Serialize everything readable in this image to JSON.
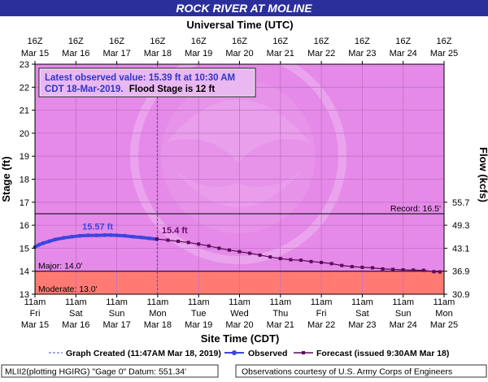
{
  "header": {
    "title": "ROCK RIVER AT MOLINE",
    "top_axis_label": "Universal Time (UTC)",
    "bottom_axis_label": "Site Time (CDT)"
  },
  "info_box": {
    "line1": "Latest observed value: 15.39 ft at 10:30 AM",
    "line2_prefix": "CDT 18-Mar-2019.",
    "line2_suffix": "Flood Stage is 12 ft"
  },
  "legend": {
    "created": "Graph Created (11:47AM Mar 18, 2019)",
    "observed": "Observed",
    "forecast": "Forecast (issued 9:30AM Mar 18)"
  },
  "footer": {
    "left": "MLII2(plotting HGIRG) \"Gage 0\" Datum: 551.34'",
    "right": "Observations courtesy of U.S. Army Corps of Engineers"
  },
  "colors": {
    "title_bg": "#2b2f9c",
    "plot_bg": "#e58ae8",
    "major_band": "#ff7a73",
    "observed": "#3b45e0",
    "forecast": "#5a0a5a",
    "annotation_observed": "#3b45e0",
    "annotation_forecast": "#6a0a6a",
    "info_text": "#2f35c8"
  },
  "chart_data": {
    "type": "line",
    "title": "ROCK RIVER AT MOLINE",
    "ylabel": "Stage (ft)",
    "y2label": "Flow (kcfs)",
    "xlabel": "Site Time (CDT)",
    "x2label": "Universal Time (UTC)",
    "ylim": [
      13,
      23
    ],
    "xlim_days": [
      "Mar 15 11am",
      "Mar 25 11am"
    ],
    "y_ticks": [
      13,
      14,
      15,
      16,
      17,
      18,
      19,
      20,
      21,
      22,
      23
    ],
    "y2_ticks": [
      {
        "stage": 13.0,
        "label": "30.9"
      },
      {
        "stage": 14.0,
        "label": "36.9"
      },
      {
        "stage": 15.0,
        "label": "43.1"
      },
      {
        "stage": 16.0,
        "label": "49.3"
      },
      {
        "stage": 17.0,
        "label": "55.7"
      }
    ],
    "x_ticks_bottom": [
      {
        "l1": "11am",
        "l2": "Fri",
        "l3": "Mar 15"
      },
      {
        "l1": "11am",
        "l2": "Sat",
        "l3": "Mar 16"
      },
      {
        "l1": "11am",
        "l2": "Sun",
        "l3": "Mar 17"
      },
      {
        "l1": "11am",
        "l2": "Mon",
        "l3": "Mar 18"
      },
      {
        "l1": "11am",
        "l2": "Tue",
        "l3": "Mar 19"
      },
      {
        "l1": "11am",
        "l2": "Wed",
        "l3": "Mar 20"
      },
      {
        "l1": "11am",
        "l2": "Thu",
        "l3": "Mar 21"
      },
      {
        "l1": "11am",
        "l2": "Fri",
        "l3": "Mar 22"
      },
      {
        "l1": "11am",
        "l2": "Sat",
        "l3": "Mar 23"
      },
      {
        "l1": "11am",
        "l2": "Sun",
        "l3": "Mar 24"
      },
      {
        "l1": "11am",
        "l2": "Mon",
        "l3": "Mar 25"
      }
    ],
    "x_ticks_top": [
      {
        "l1": "16Z",
        "l2": "Mar 15"
      },
      {
        "l1": "16Z",
        "l2": "Mar 16"
      },
      {
        "l1": "16Z",
        "l2": "Mar 17"
      },
      {
        "l1": "16Z",
        "l2": "Mar 18"
      },
      {
        "l1": "16Z",
        "l2": "Mar 19"
      },
      {
        "l1": "16Z",
        "l2": "Mar 20"
      },
      {
        "l1": "16Z",
        "l2": "Mar 21"
      },
      {
        "l1": "16Z",
        "l2": "Mar 22"
      },
      {
        "l1": "16Z",
        "l2": "Mar 23"
      },
      {
        "l1": "16Z",
        "l2": "Mar 24"
      },
      {
        "l1": "16Z",
        "l2": "Mar 25"
      }
    ],
    "thresholds": [
      {
        "label": "Record: 16.5'",
        "value": 16.5
      },
      {
        "label": "Major: 14.0'",
        "value": 14.0
      },
      {
        "label": "Moderate: 13.0'",
        "value": 13.0
      }
    ],
    "graph_created_day": 2.99,
    "annotations": [
      {
        "text": "15.57 ft",
        "series": "Observed",
        "day": 1.85,
        "value": 15.57
      },
      {
        "text": "15.4 ft",
        "series": "Forecast",
        "day": 3.1,
        "value": 15.4
      }
    ],
    "series": [
      {
        "name": "Observed",
        "x_days": [
          0.0,
          0.1,
          0.2,
          0.35,
          0.5,
          0.7,
          0.9,
          1.1,
          1.3,
          1.5,
          1.7,
          1.85,
          2.0,
          2.2,
          2.4,
          2.6,
          2.8,
          2.98
        ],
        "values": [
          15.05,
          15.15,
          15.22,
          15.3,
          15.38,
          15.45,
          15.5,
          15.54,
          15.56,
          15.56,
          15.57,
          15.57,
          15.56,
          15.54,
          15.5,
          15.47,
          15.43,
          15.39
        ]
      },
      {
        "name": "Forecast",
        "x_days": [
          2.98,
          3.25,
          3.5,
          3.75,
          4.0,
          4.25,
          4.5,
          4.75,
          5.0,
          5.25,
          5.5,
          5.75,
          6.0,
          6.25,
          6.5,
          6.75,
          7.0,
          7.25,
          7.5,
          7.75,
          8.0,
          8.25,
          8.5,
          8.75,
          9.0,
          9.25,
          9.5,
          9.75,
          9.9
        ],
        "values": [
          15.4,
          15.35,
          15.3,
          15.25,
          15.18,
          15.1,
          15.0,
          14.92,
          14.85,
          14.78,
          14.7,
          14.62,
          14.55,
          14.5,
          14.48,
          14.42,
          14.38,
          14.33,
          14.25,
          14.2,
          14.17,
          14.15,
          14.1,
          14.08,
          14.06,
          14.05,
          14.04,
          13.98,
          13.97
        ]
      }
    ],
    "grid": true,
    "legend_position": "below plot"
  }
}
